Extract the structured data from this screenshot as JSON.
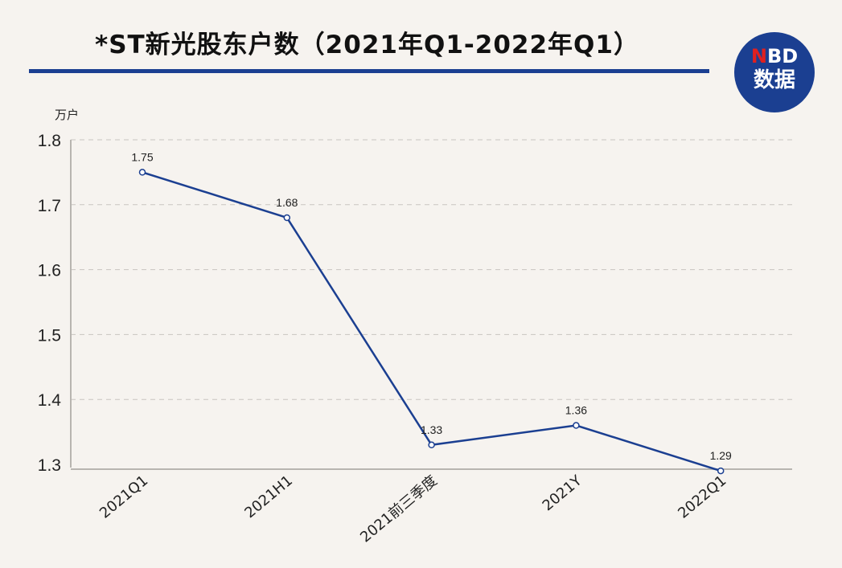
{
  "title": "*ST新光股东户数（2021年Q1-2022年Q1）",
  "logo": {
    "text_n": "N",
    "text_bd": "BD",
    "text_sub": "数据"
  },
  "colors": {
    "line": "#1b3f91",
    "accent": "#1b3f91",
    "logo_red": "#e02020"
  },
  "chart_data": {
    "type": "line",
    "title": "*ST新光股东户数（2021年Q1-2022年Q1）",
    "ylabel": "万户",
    "xlabel": "",
    "categories": [
      "2021Q1",
      "2021H1",
      "2021前三季度",
      "2021Y",
      "2022Q1"
    ],
    "values": [
      1.75,
      1.68,
      1.33,
      1.36,
      1.29
    ],
    "data_labels": [
      "1.75",
      "1.68",
      "1.33",
      "1.36",
      "1.29"
    ],
    "ylim": [
      1.3,
      1.8
    ],
    "yticks": [
      "1.3",
      "1.4",
      "1.5",
      "1.6",
      "1.7",
      "1.8"
    ],
    "grid": true,
    "legend": "none"
  }
}
